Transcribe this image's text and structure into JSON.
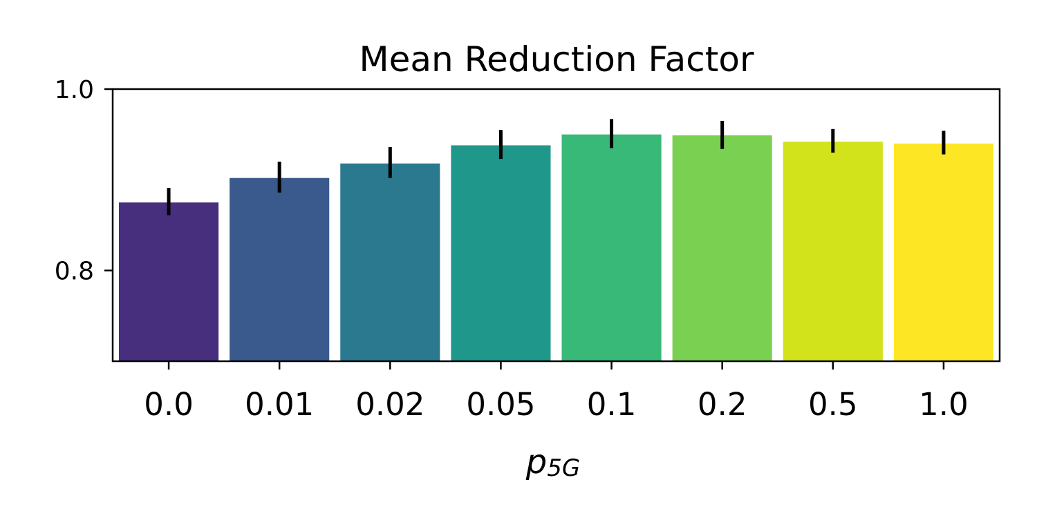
{
  "chart_data": {
    "type": "bar",
    "title": "Mean Reduction Factor",
    "xlabel_base": "p",
    "xlabel_subscript": "5G",
    "ylabel": "",
    "categories": [
      "0.0",
      "0.01",
      "0.02",
      "0.05",
      "0.1",
      "0.2",
      "0.5",
      "1.0"
    ],
    "values": [
      0.875,
      0.902,
      0.918,
      0.938,
      0.95,
      0.949,
      0.942,
      0.94
    ],
    "error_low": [
      0.861,
      0.886,
      0.902,
      0.923,
      0.935,
      0.934,
      0.93,
      0.928
    ],
    "error_high": [
      0.891,
      0.92,
      0.936,
      0.955,
      0.967,
      0.965,
      0.956,
      0.954
    ],
    "bar_colors": [
      "#472f7d",
      "#3a598c",
      "#2b798e",
      "#1f988b",
      "#38b977",
      "#7ad151",
      "#d2e21b",
      "#fde725"
    ],
    "ylim": [
      0.7,
      1.0
    ],
    "yticks": [
      0.8,
      1.0
    ],
    "ytick_labels": [
      "0.8",
      "1.0"
    ],
    "grid": false,
    "legend": "none"
  }
}
